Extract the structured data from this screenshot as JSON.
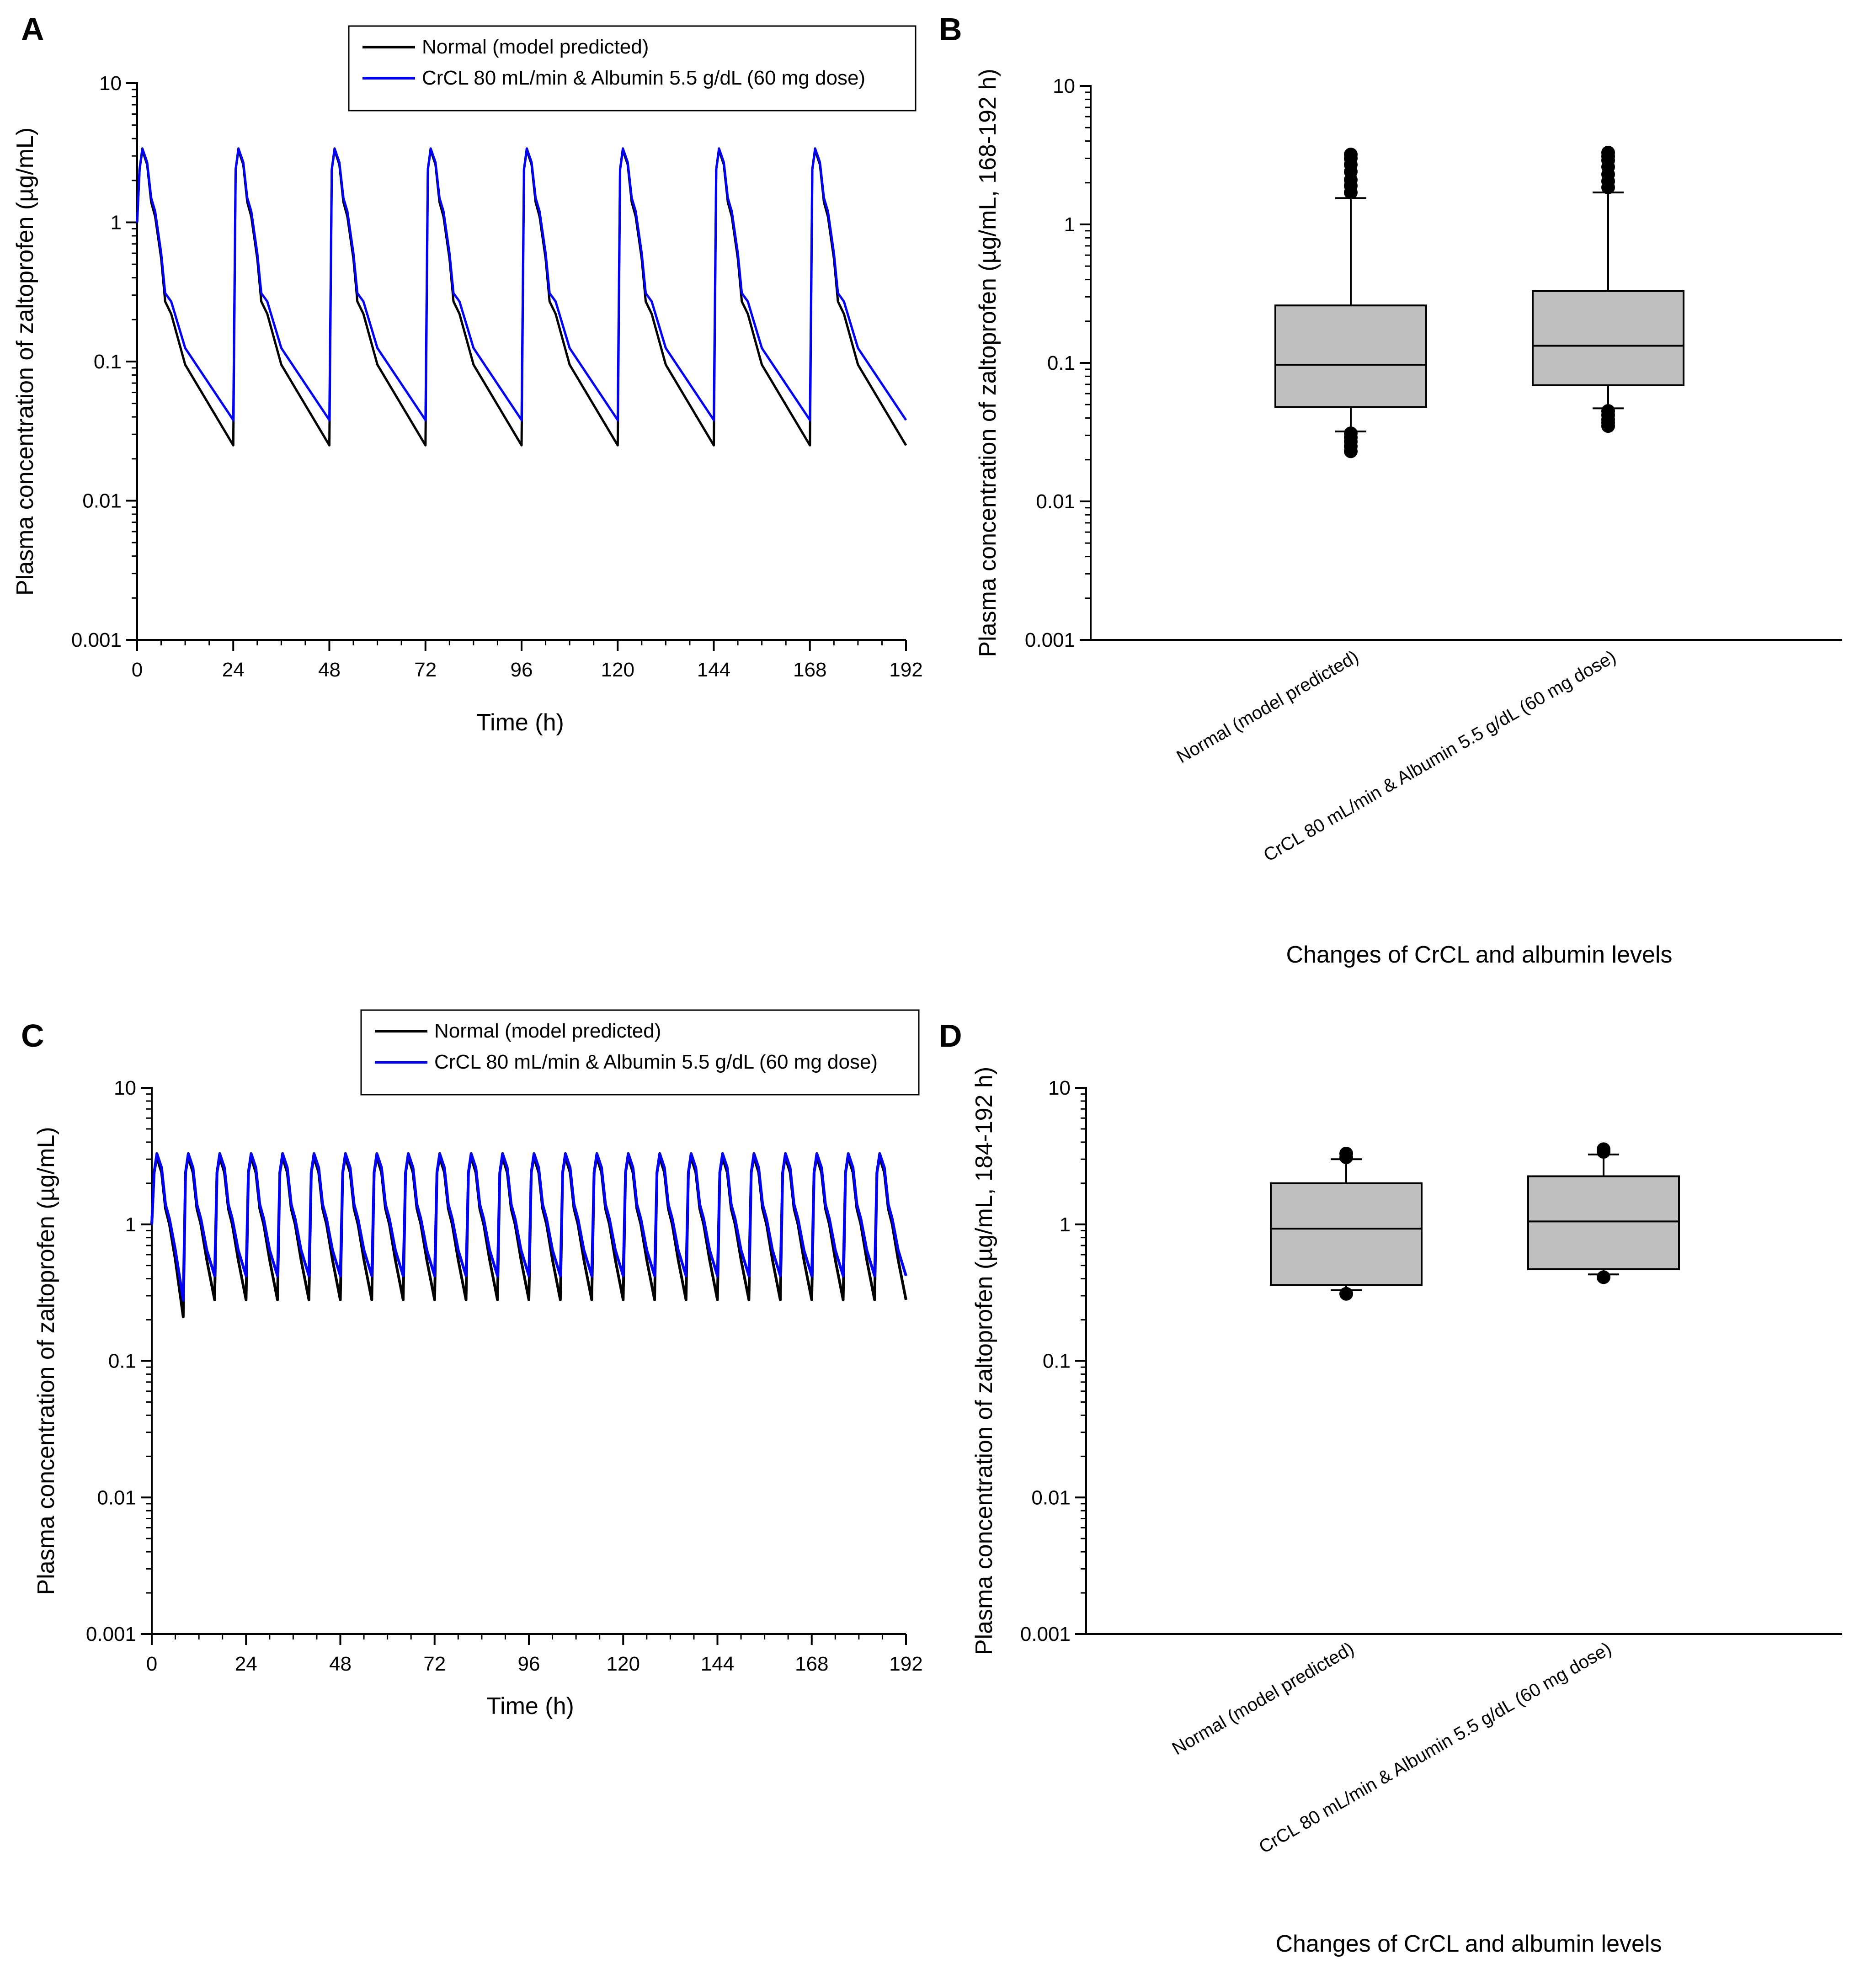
{
  "figure": {
    "colors": {
      "normal": "#000000",
      "crcl": "#0000ff",
      "box_fill": "#c0c0c0"
    }
  },
  "chart_data": [
    {
      "panel": "A",
      "type": "line",
      "yscale": "log",
      "xlabel": "Time (h)",
      "ylabel": "Plasma concentration of zaltoprofen (µg/mL)",
      "xlim": [
        0,
        192
      ],
      "ylim": [
        0.001,
        10
      ],
      "x_ticks": [
        "0",
        "24",
        "48",
        "72",
        "96",
        "120",
        "144",
        "168",
        "192"
      ],
      "y_ticks": [
        "0.001",
        "0.01",
        "0.1",
        "1",
        "10"
      ],
      "dosing_interval_h": 24,
      "legend": [
        "Normal (model predicted)",
        "CrCL 80 mL/min & Albumin 5.5 g/dL (60 mg dose)"
      ],
      "series": [
        {
          "name": "Normal (model predicted)",
          "color": "#000000",
          "profile_points": [
            [
              0,
              1.0
            ],
            [
              0.6,
              2.4
            ],
            [
              1.3,
              3.3
            ],
            [
              2.5,
              2.6
            ],
            [
              3.5,
              1.4
            ],
            [
              4.5,
              1.1
            ],
            [
              6,
              0.55
            ],
            [
              7,
              0.27
            ],
            [
              8.5,
              0.22
            ],
            [
              12,
              0.095
            ],
            [
              24,
              0.025
            ]
          ]
        },
        {
          "name": "CrCL 80 mL/min & Albumin 5.5 g/dL (60 mg dose)",
          "color": "#0000ff",
          "profile_points": [
            [
              0,
              1.0
            ],
            [
              0.6,
              2.4
            ],
            [
              1.3,
              3.4
            ],
            [
              2.5,
              2.7
            ],
            [
              3.5,
              1.5
            ],
            [
              4.5,
              1.2
            ],
            [
              6,
              0.6
            ],
            [
              7,
              0.31
            ],
            [
              8.5,
              0.27
            ],
            [
              12,
              0.125
            ],
            [
              24,
              0.038
            ]
          ]
        }
      ]
    },
    {
      "panel": "B",
      "type": "box",
      "yscale": "log",
      "xlabel": "Changes of CrCL and albumin levels",
      "ylabel": "Plasma concentration of zaltoprofen (µg/mL,  168-192 h)",
      "ylim": [
        0.001,
        10
      ],
      "y_ticks": [
        "0.001",
        "0.01",
        "0.1",
        "1",
        "10"
      ],
      "categories": [
        "Normal (model predicted)",
        "CrCL 80 mL/min & Albumin 5.5 g/dL (60 mg dose)"
      ],
      "boxes": [
        {
          "whisker_low": 0.032,
          "q1": 0.048,
          "median": 0.097,
          "q3": 0.26,
          "whisker_high": 1.55,
          "outliers": [
            0.023,
            0.025,
            0.027,
            0.029,
            0.031,
            1.7,
            1.9,
            2.1,
            2.4,
            2.7,
            3.0,
            3.2
          ]
        },
        {
          "whisker_low": 0.047,
          "q1": 0.069,
          "median": 0.133,
          "q3": 0.33,
          "whisker_high": 1.7,
          "outliers": [
            0.035,
            0.037,
            0.039,
            0.042,
            0.045,
            1.85,
            2.05,
            2.3,
            2.6,
            2.9,
            3.1,
            3.3
          ]
        }
      ]
    },
    {
      "panel": "C",
      "type": "line",
      "yscale": "log",
      "xlabel": "Time (h)",
      "ylabel": "Plasma concentration of zaltoprofen (µg/mL)",
      "xlim": [
        0,
        192
      ],
      "ylim": [
        0.001,
        10
      ],
      "x_ticks": [
        "0",
        "24",
        "48",
        "72",
        "96",
        "120",
        "144",
        "168",
        "192"
      ],
      "y_ticks": [
        "0.001",
        "0.01",
        "0.1",
        "1",
        "10"
      ],
      "dosing_interval_h": 8,
      "legend": [
        "Normal (model predicted)",
        "CrCL 80 mL/min & Albumin 5.5 g/dL (60 mg dose)"
      ],
      "series": [
        {
          "name": "Normal (model predicted)",
          "color": "#000000",
          "first_trough": 0.21,
          "steady_trough": 0.28,
          "profile_points": [
            [
              0,
              1.0
            ],
            [
              0.6,
              2.4
            ],
            [
              1.3,
              3.1
            ],
            [
              2.5,
              2.4
            ],
            [
              3.5,
              1.3
            ],
            [
              4.5,
              1.0
            ],
            [
              6,
              0.55
            ],
            [
              8,
              0.28
            ]
          ]
        },
        {
          "name": "CrCL 80 mL/min & Albumin 5.5 g/dL (60 mg dose)",
          "color": "#0000ff",
          "first_trough": 0.28,
          "steady_trough": 0.42,
          "profile_points": [
            [
              0,
              1.0
            ],
            [
              0.6,
              2.4
            ],
            [
              1.3,
              3.3
            ],
            [
              2.5,
              2.6
            ],
            [
              3.5,
              1.4
            ],
            [
              4.5,
              1.1
            ],
            [
              6,
              0.65
            ],
            [
              8,
              0.42
            ]
          ]
        }
      ]
    },
    {
      "panel": "D",
      "type": "box",
      "yscale": "log",
      "xlabel": "Changes of CrCL and albumin levels",
      "ylabel": "Plasma concentration of zaltoprofen (µg/mL,  184-192 h)",
      "ylim": [
        0.001,
        10
      ],
      "y_ticks": [
        "0.001",
        "0.01",
        "0.1",
        "1",
        "10"
      ],
      "categories": [
        "Normal (model predicted)",
        "CrCL 80 mL/min & Albumin 5.5 g/dL (60 mg dose)"
      ],
      "boxes": [
        {
          "whisker_low": 0.33,
          "q1": 0.36,
          "median": 0.93,
          "q3": 2.0,
          "whisker_high": 3.0,
          "outliers": [
            0.31,
            3.1,
            3.3
          ]
        },
        {
          "whisker_low": 0.43,
          "q1": 0.47,
          "median": 1.05,
          "q3": 2.25,
          "whisker_high": 3.25,
          "outliers": [
            0.41,
            3.4,
            3.55
          ]
        }
      ]
    }
  ]
}
